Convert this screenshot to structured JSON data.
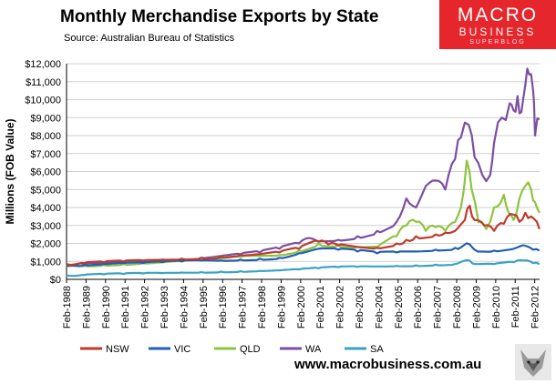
{
  "header": {
    "title": "Monthly Merchandise Exports by State",
    "source": "Source:  Australian Bureau of Statistics"
  },
  "logo": {
    "line1": "MACRO",
    "line2": "BUSINESS",
    "line3": "SUPERBLOG",
    "color": "#e5262d"
  },
  "footer": {
    "website": "www.macrobusiness.com.au"
  },
  "chart_data": {
    "type": "line",
    "ylabel": "Millions (FOB Value)",
    "ylim": [
      0,
      12000
    ],
    "yticks": [
      "$0",
      "$1,000",
      "$2,000",
      "$3,000",
      "$4,000",
      "$5,000",
      "$6,000",
      "$7,000",
      "$8,000",
      "$9,000",
      "$10,000",
      "$11,000",
      "$12,000"
    ],
    "xticks": [
      "Feb-1988",
      "Feb-1989",
      "Feb-1990",
      "Feb-1991",
      "Feb-1992",
      "Feb-1993",
      "Feb-1994",
      "Feb-1995",
      "Feb-1996",
      "Feb-1997",
      "Feb-1998",
      "Feb-1999",
      "Feb-2000",
      "Feb-2001",
      "Feb-2002",
      "Feb-2003",
      "Feb-2004",
      "Feb-2005",
      "Feb-2006",
      "Feb-2007",
      "Feb-2008",
      "Feb-2009",
      "Feb-2010",
      "Feb-2011",
      "Feb-2012"
    ],
    "x_start": 1988.083,
    "x_end": 2012.333,
    "grid": "horizontal",
    "legend": "bottom",
    "series": [
      {
        "name": "NSW",
        "color": "#c0392b",
        "x": [
          1988.08,
          1989,
          1990,
          1991,
          1992,
          1993,
          1994,
          1995,
          1996,
          1997,
          1998,
          1999,
          2000,
          2001,
          2001.5,
          2002,
          2003,
          2004,
          2005,
          2005.5,
          2006,
          2007,
          2007.5,
          2008,
          2008.5,
          2008.75,
          2009,
          2009.5,
          2010,
          2010.5,
          2011,
          2011.3,
          2011.6,
          2011.9,
          2012.33
        ],
        "values": [
          850,
          900,
          950,
          1000,
          1050,
          1100,
          1150,
          1200,
          1250,
          1350,
          1400,
          1500,
          1700,
          2100,
          1950,
          1900,
          1800,
          1750,
          2000,
          2200,
          2400,
          2500,
          2600,
          2700,
          3300,
          4100,
          3300,
          3000,
          2700,
          3100,
          3600,
          3200,
          3700,
          3500,
          2800
        ]
      },
      {
        "name": "VIC",
        "color": "#1f5fb5",
        "x": [
          1988.08,
          1989,
          1990,
          1991,
          1992,
          1993,
          1994,
          1995,
          1996,
          1997,
          1998,
          1999,
          2000,
          2001,
          2002,
          2003,
          2004,
          2005,
          2006,
          2007,
          2008,
          2008.75,
          2009,
          2010,
          2011,
          2011.5,
          2012,
          2012.33
        ],
        "values": [
          750,
          800,
          850,
          900,
          900,
          950,
          1000,
          1050,
          1050,
          1100,
          1150,
          1200,
          1450,
          1700,
          1650,
          1550,
          1450,
          1500,
          1550,
          1650,
          1750,
          1950,
          1650,
          1600,
          1700,
          1900,
          1650,
          1600
        ]
      },
      {
        "name": "QLD",
        "color": "#8dc43f",
        "x": [
          1988.08,
          1989,
          1990,
          1991,
          1992,
          1993,
          1994,
          1995,
          1996,
          1997,
          1998,
          1999,
          2000,
          2001,
          2002,
          2003,
          2004,
          2005,
          2005.5,
          2006,
          2006.5,
          2007,
          2007.5,
          2008,
          2008.3,
          2008.6,
          2008.85,
          2009.2,
          2009.6,
          2010,
          2010.5,
          2010.75,
          2011,
          2011.3,
          2011.6,
          2011.9,
          2012.1,
          2012.33
        ],
        "values": [
          700,
          750,
          800,
          850,
          900,
          950,
          1000,
          1050,
          1150,
          1250,
          1300,
          1350,
          1600,
          2000,
          1900,
          1800,
          1800,
          2400,
          3000,
          3200,
          2700,
          2900,
          2700,
          3200,
          4000,
          6600,
          5000,
          3200,
          2800,
          4000,
          4700,
          3700,
          3300,
          4500,
          5200,
          5000,
          4300,
          3700
        ]
      },
      {
        "name": "WA",
        "color": "#7b4ea3",
        "x": [
          1988.08,
          1989,
          1990,
          1991,
          1992,
          1993,
          1994,
          1995,
          1996,
          1997,
          1998,
          1999,
          2000,
          2000.5,
          2001,
          2002,
          2003,
          2004,
          2005,
          2005.5,
          2006,
          2006.5,
          2007,
          2007.5,
          2008,
          2008.3,
          2008.7,
          2009,
          2009.4,
          2009.8,
          2010,
          2010.4,
          2010.8,
          2011,
          2011.2,
          2011.4,
          2011.6,
          2011.8,
          2012,
          2012.1,
          2012.33
        ],
        "values": [
          800,
          850,
          900,
          950,
          1000,
          1050,
          1100,
          1200,
          1300,
          1400,
          1500,
          1700,
          2000,
          2300,
          2100,
          2200,
          2400,
          2700,
          3200,
          4500,
          4000,
          5200,
          5500,
          5000,
          6700,
          7900,
          8600,
          6800,
          5800,
          5800,
          7600,
          9000,
          9800,
          9400,
          10200,
          9300,
          10800,
          11400,
          10500,
          8000,
          8900
        ]
      },
      {
        "name": "SA",
        "color": "#3aa3c4",
        "x": [
          1988.08,
          1989,
          1990,
          1991,
          1992,
          1993,
          1994,
          1995,
          1996,
          1997,
          1998,
          1999,
          2000,
          2001,
          2002,
          2003,
          2004,
          2005,
          2006,
          2007,
          2008,
          2008.75,
          2009,
          2010,
          2011,
          2011.5,
          2012,
          2012.33
        ],
        "values": [
          220,
          250,
          280,
          300,
          330,
          350,
          380,
          400,
          430,
          450,
          470,
          500,
          550,
          620,
          680,
          700,
          720,
          750,
          780,
          820,
          850,
          1050,
          850,
          850,
          950,
          1050,
          900,
          850
        ]
      }
    ]
  }
}
